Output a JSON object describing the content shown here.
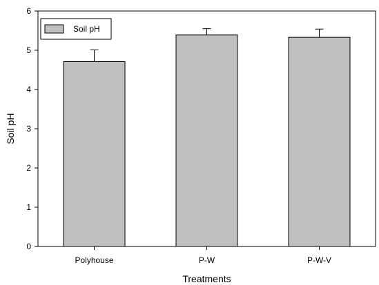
{
  "chart_data": {
    "type": "bar",
    "categories": [
      "Polyhouse",
      "P-W",
      "P-W-V"
    ],
    "series": [
      {
        "name": "Soil pH",
        "values": [
          4.71,
          5.39,
          5.33
        ],
        "errors": [
          0.3,
          0.16,
          0.21
        ]
      }
    ],
    "xlabel": "Treatments",
    "ylabel": "Soil pH",
    "ylim": [
      0,
      6
    ],
    "yticks": [
      0,
      1,
      2,
      3,
      4,
      5,
      6
    ],
    "grid": false,
    "legend_position": "top-left",
    "bar_color": "#c0c0c0",
    "edge_color": "#000000"
  }
}
